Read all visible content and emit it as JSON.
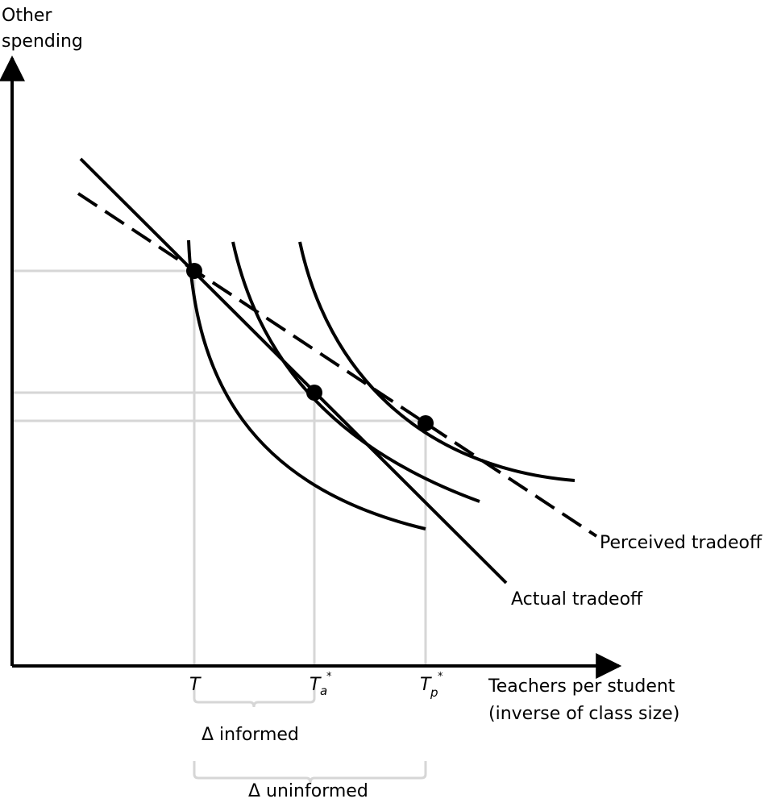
{
  "axes": {
    "y_label_line1": "Other",
    "y_label_line2": "spending",
    "x_label_line1": "Teachers per student",
    "x_label_line2": "(inverse of class size)"
  },
  "lines": {
    "perceived": "Perceived tradeoff",
    "actual": "Actual tradeoff"
  },
  "ticks": {
    "t": "T",
    "ta_base": "T",
    "ta_sub": "a",
    "ta_sup": "*",
    "tp_base": "T",
    "tp_sub": "p",
    "tp_sup": "*"
  },
  "braces": {
    "informed": "Δ informed",
    "uninformed": "Δ uninformed"
  },
  "colors": {
    "ink": "#000000",
    "guide": "#d6d6d6"
  }
}
